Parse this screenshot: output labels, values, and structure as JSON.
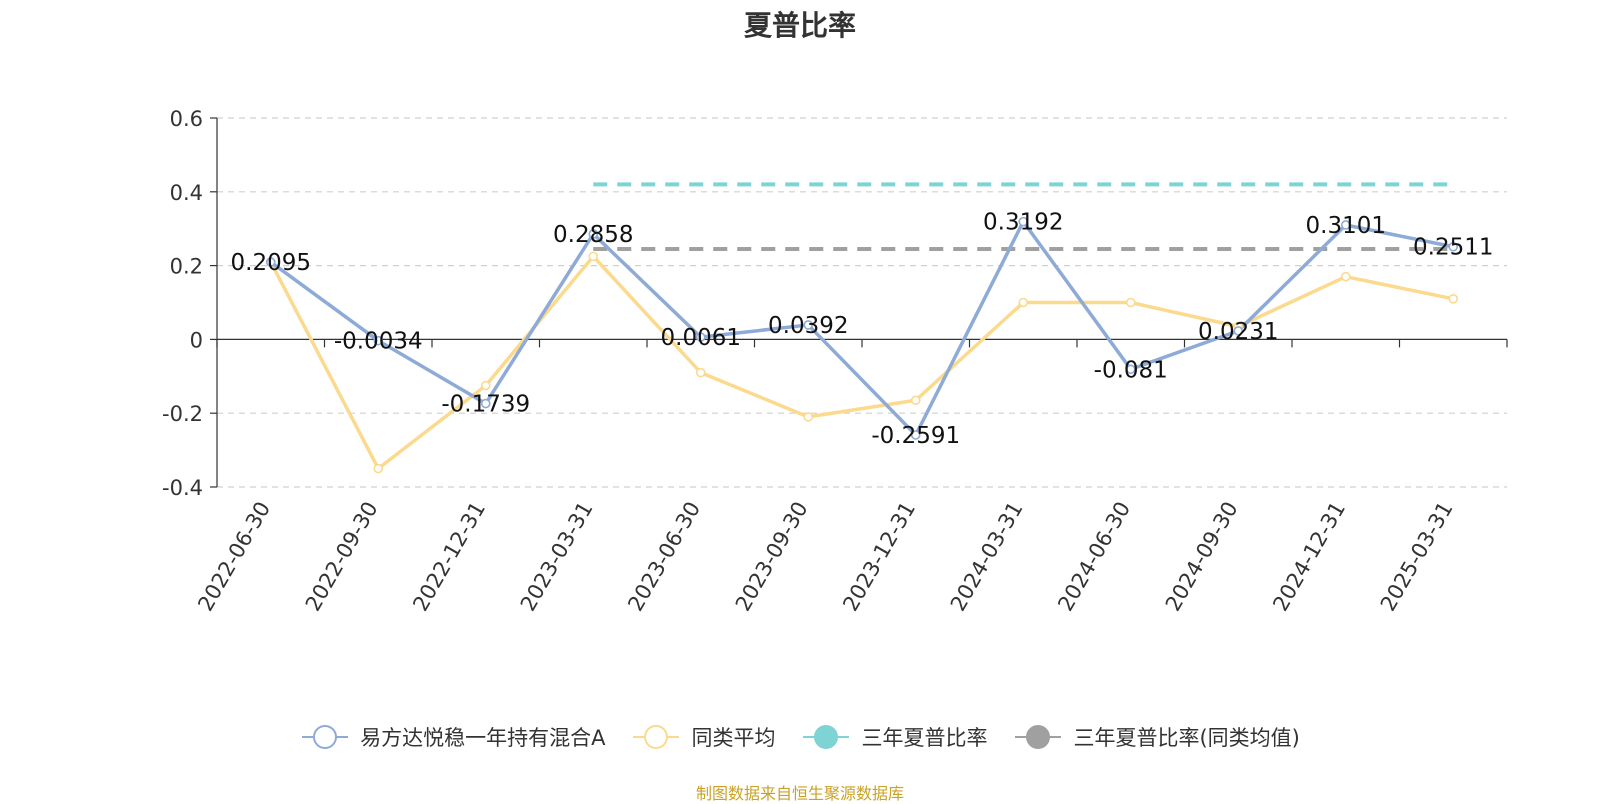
{
  "title": "夏普比率",
  "source": "制图数据来自恒生聚源数据库",
  "chart_data": {
    "type": "line",
    "title": "夏普比率",
    "categories": [
      "2022-06-30",
      "2022-09-30",
      "2022-12-31",
      "2023-03-31",
      "2023-06-30",
      "2023-09-30",
      "2023-12-31",
      "2024-03-31",
      "2024-06-30",
      "2024-09-30",
      "2024-12-31",
      "2025-03-31"
    ],
    "ylim": [
      -0.4,
      0.6
    ],
    "yticks": [
      0.6,
      0.4,
      0.2,
      0,
      -0.2,
      -0.4
    ],
    "ytick_labels": [
      "0.6",
      "0.4",
      "0.2",
      "0",
      "-0.2",
      "-0.4"
    ],
    "grid": true,
    "legend_position": "bottom",
    "series": [
      {
        "name": "易方达悦稳一年持有混合A",
        "color": "#8eaad6",
        "values": [
          0.2095,
          -0.0034,
          -0.1739,
          0.2858,
          0.0061,
          0.0392,
          -0.2591,
          0.3192,
          -0.081,
          0.0231,
          0.3101,
          0.2511
        ],
        "labels": [
          "0.2095",
          "-0.0034",
          "-0.1739",
          "0.2858",
          "0.0061",
          "0.0392",
          "-0.2591",
          "0.3192",
          "-0.081",
          "0.0231",
          "0.3101",
          "0.2511"
        ]
      },
      {
        "name": "同类平均",
        "color": "#fbd98d",
        "values": [
          0.21,
          -0.35,
          -0.125,
          0.225,
          -0.09,
          -0.21,
          -0.165,
          0.1,
          0.1,
          0.035,
          0.17,
          0.11
        ]
      }
    ],
    "reference_lines": [
      {
        "name": "三年夏普比率",
        "color": "#7ed3d4",
        "value": 0.42,
        "from": "2023-03-31",
        "to": "2025-03-31"
      },
      {
        "name": "三年夏普比率(同类均值)",
        "color": "#a0a0a0",
        "value": 0.245,
        "from": "2023-03-31",
        "to": "2025-03-31"
      }
    ]
  }
}
